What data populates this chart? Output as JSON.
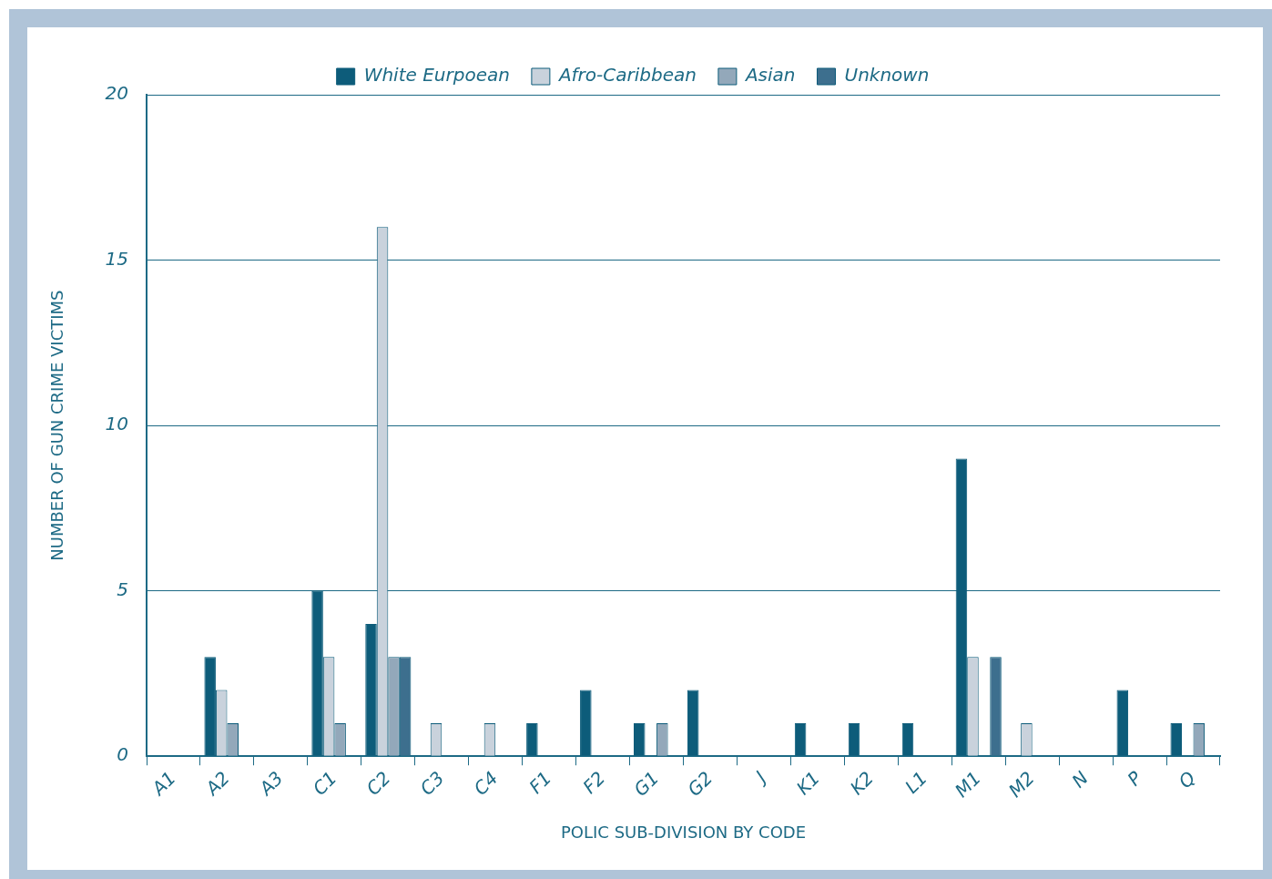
{
  "chart_data": {
    "type": "bar",
    "xlabel": "POLIC SUB-DIVISION BY CODE",
    "ylabel": "NUMBER OF GUN CRIME VICTIMS",
    "categories": [
      "A1",
      "A2",
      "A3",
      "C1",
      "C2",
      "C3",
      "C4",
      "F1",
      "F2",
      "G1",
      "G2",
      "J",
      "K1",
      "K2",
      "L1",
      "M1",
      "M2",
      "N",
      "P",
      "Q"
    ],
    "series": [
      {
        "name": "White Eurpoean",
        "color": "#0d5c7a",
        "values": [
          0,
          3,
          0,
          5,
          4,
          0,
          0,
          1,
          2,
          1,
          2,
          0,
          1,
          1,
          1,
          9,
          0,
          0,
          2,
          1
        ]
      },
      {
        "name": "Afro-Caribbean",
        "color": "#c9d2dc",
        "values": [
          0,
          2,
          0,
          3,
          16,
          1,
          1,
          0,
          0,
          0,
          0,
          0,
          0,
          0,
          0,
          3,
          1,
          0,
          0,
          0
        ]
      },
      {
        "name": "Asian",
        "color": "#93a8ba",
        "values": [
          0,
          1,
          0,
          1,
          3,
          0,
          0,
          0,
          0,
          1,
          0,
          0,
          0,
          0,
          0,
          0,
          0,
          0,
          0,
          1
        ]
      },
      {
        "name": "Unknown",
        "color": "#3d6f8e",
        "values": [
          0,
          0,
          0,
          0,
          3,
          0,
          0,
          0,
          0,
          0,
          0,
          0,
          0,
          0,
          0,
          3,
          0,
          0,
          0,
          0
        ]
      }
    ],
    "ylim": [
      0,
      20
    ],
    "yticks": [
      0,
      5,
      10,
      15,
      20
    ],
    "grid": "y",
    "legend": "top"
  }
}
